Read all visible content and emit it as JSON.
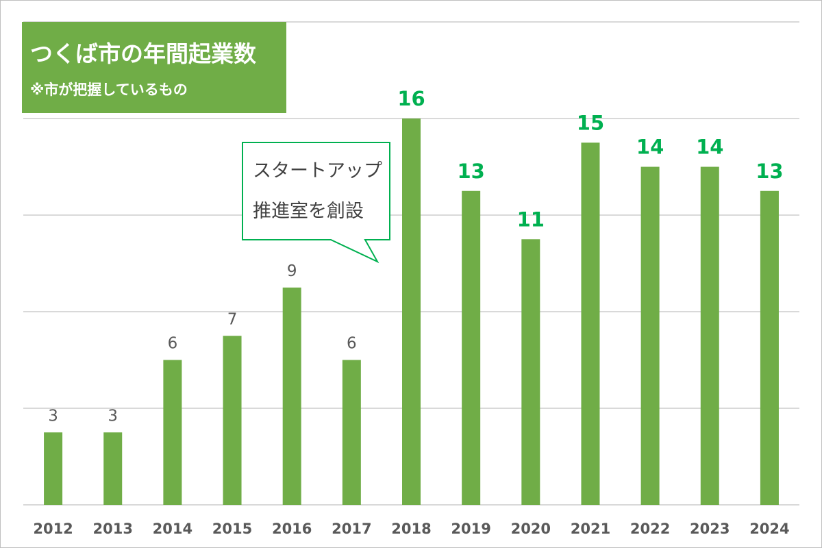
{
  "chart_data": {
    "type": "bar",
    "title": "つくば市の年間起業数",
    "subtitle": "※市が把握しているもの",
    "categories": [
      "2012",
      "2013",
      "2014",
      "2015",
      "2016",
      "2017",
      "2018",
      "2019",
      "2020",
      "2021",
      "2022",
      "2023",
      "2024"
    ],
    "values": [
      3,
      3,
      6,
      7,
      9,
      6,
      16,
      13,
      11,
      15,
      14,
      14,
      13
    ],
    "ylim": [
      0,
      16
    ],
    "grid": true,
    "annotation": {
      "lines": [
        "スタートアップ",
        "推進室を創設"
      ],
      "points_to": "2018"
    },
    "colors": {
      "bar": "#70ad47",
      "label_highlight": "#00b050",
      "label_normal": "#595959",
      "axis_text": "#595959",
      "grid": "#d9d9d9"
    }
  }
}
